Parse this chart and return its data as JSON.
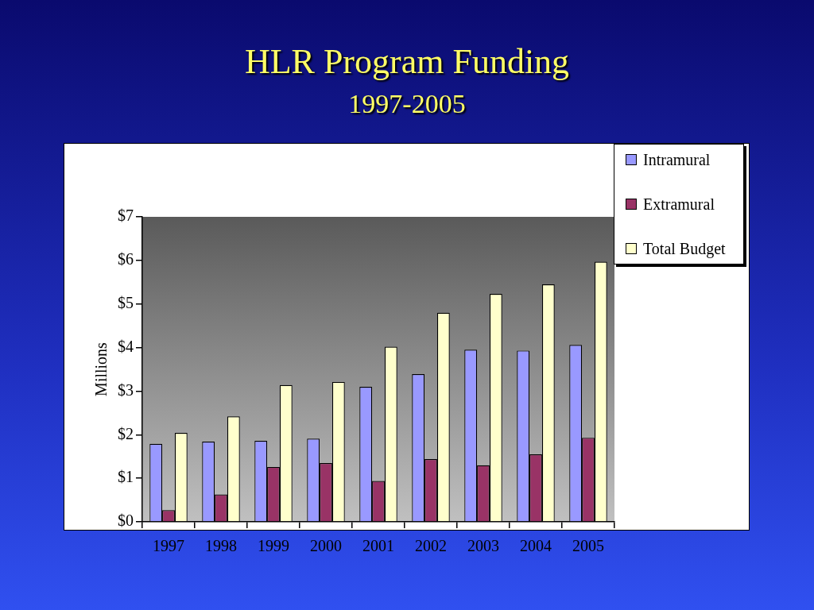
{
  "chart_data": {
    "type": "bar",
    "title": "HLR Program Funding",
    "subtitle": "1997-2005",
    "ylabel": "Millions",
    "categories": [
      "1997",
      "1998",
      "1999",
      "2000",
      "2001",
      "2002",
      "2003",
      "2004",
      "2005"
    ],
    "series": [
      {
        "name": "Intramural",
        "color": "#9999ff",
        "values": [
          1.79,
          1.84,
          1.86,
          1.91,
          3.1,
          3.39,
          3.95,
          3.93,
          4.06
        ]
      },
      {
        "name": "Extramural",
        "color": "#993366",
        "values": [
          0.27,
          0.63,
          1.26,
          1.35,
          0.94,
          1.44,
          1.3,
          1.55,
          1.93
        ]
      },
      {
        "name": "Total Budget",
        "color": "#ffffcc",
        "values": [
          2.04,
          2.42,
          3.14,
          3.21,
          4.02,
          4.8,
          5.23,
          5.45,
          5.97
        ]
      }
    ],
    "ylim": [
      0,
      7
    ],
    "yticks": [
      {
        "value": 0,
        "label": "$0"
      },
      {
        "value": 1,
        "label": "$1"
      },
      {
        "value": 2,
        "label": "$2"
      },
      {
        "value": 3,
        "label": "$3"
      },
      {
        "value": 4,
        "label": "$4"
      },
      {
        "value": 5,
        "label": "$5"
      },
      {
        "value": 6,
        "label": "$6"
      },
      {
        "value": 7,
        "label": "$7"
      }
    ],
    "grid": false,
    "legend": "top right"
  }
}
